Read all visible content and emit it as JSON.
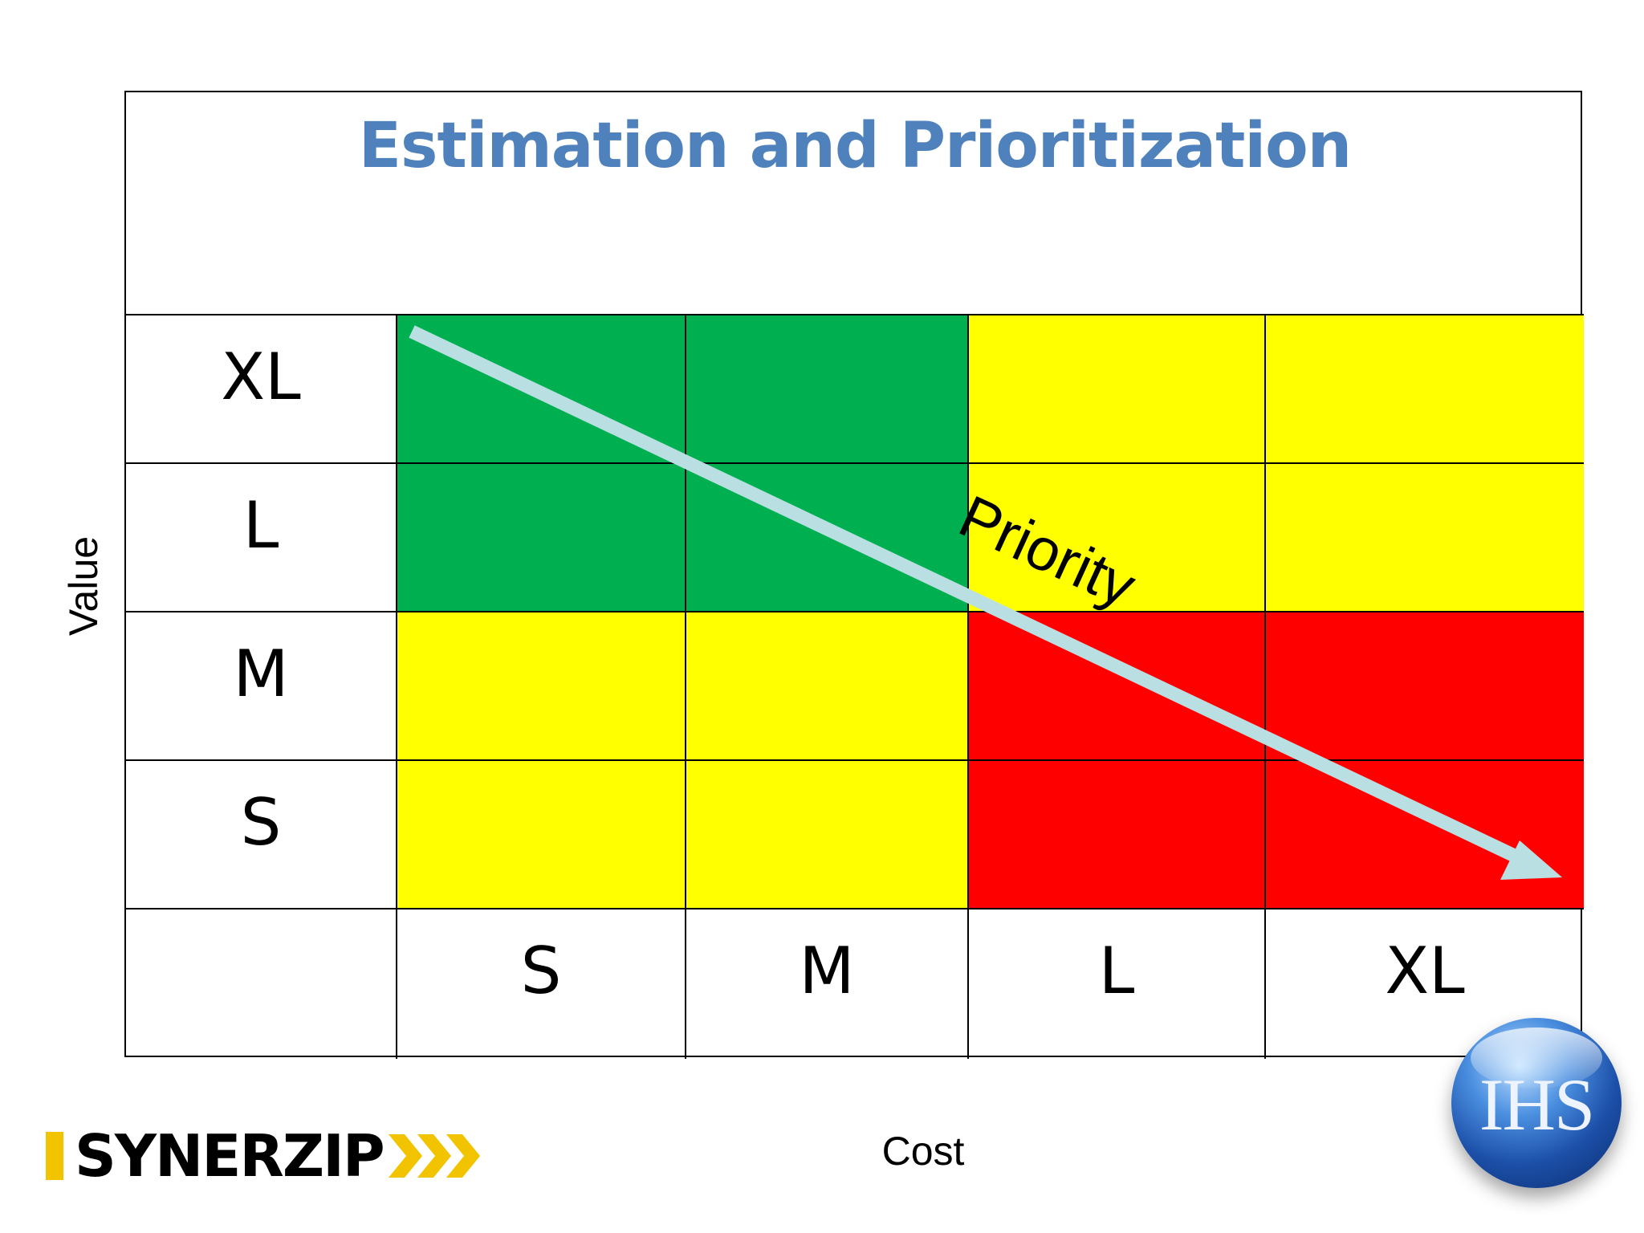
{
  "title": "Estimation and Prioritization",
  "axes": {
    "y_label": "Value",
    "x_label": "Cost"
  },
  "rows": [
    {
      "label": "XL",
      "cells": [
        "green",
        "green",
        "yellow",
        "yellow"
      ]
    },
    {
      "label": "L",
      "cells": [
        "green",
        "green",
        "yellow",
        "yellow"
      ]
    },
    {
      "label": "M",
      "cells": [
        "yellow",
        "yellow",
        "red",
        "red"
      ]
    },
    {
      "label": "S",
      "cells": [
        "yellow",
        "yellow",
        "red",
        "red"
      ]
    }
  ],
  "columns": [
    "S",
    "M",
    "L",
    "XL"
  ],
  "colors": {
    "green": "#00b050",
    "yellow": "#ffff00",
    "red": "#ff0000",
    "arrow": "#b9dfe3",
    "title": "#4f81bd"
  },
  "arrow_label": "Priority",
  "logos": {
    "left": "SYNERZIP",
    "right": "IHS"
  }
}
